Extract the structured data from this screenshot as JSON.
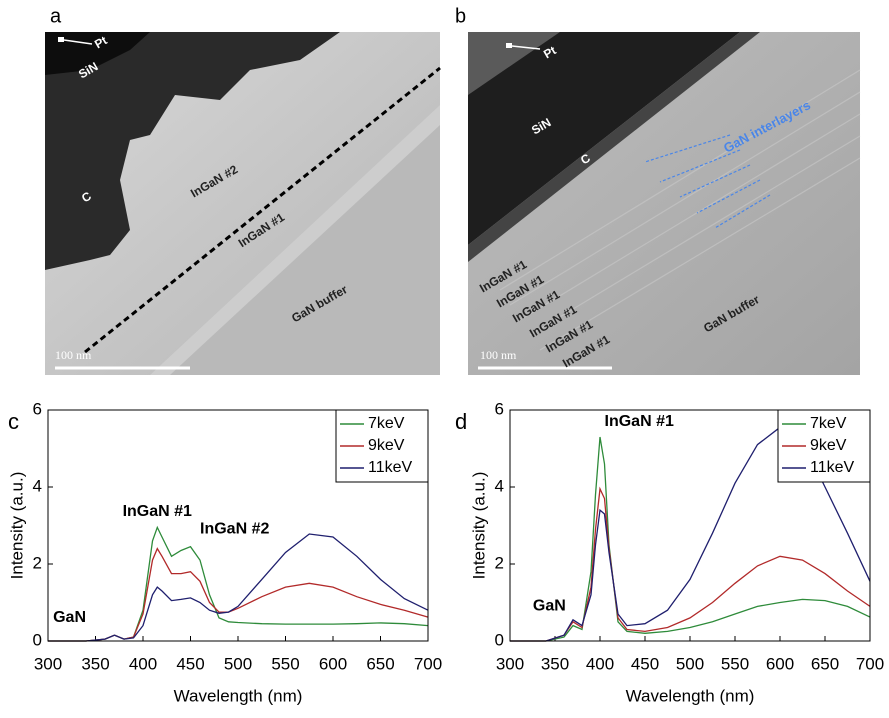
{
  "micrographs": [
    {
      "panel_label": "a",
      "labels": [
        "Pt",
        "SiN",
        "C",
        "InGaN #2",
        "InGaN #1",
        "GaN buffer"
      ],
      "scale_bar": "100 nm"
    },
    {
      "panel_label": "b",
      "labels": [
        "Pt",
        "SiN",
        "C",
        "GaN interlayers",
        "InGaN #1",
        "InGaN #1",
        "InGaN #1",
        "InGaN #1",
        "InGaN #1",
        "InGaN #1",
        "GaN buffer"
      ],
      "scale_bar": "100 nm"
    }
  ],
  "chart_data": [
    {
      "type": "line",
      "panel_label": "c",
      "xlabel": "Wavelength (nm)",
      "ylabel": "Intensity (a.u.)",
      "x": [
        300,
        340,
        360,
        370,
        380,
        390,
        400,
        410,
        415,
        420,
        430,
        440,
        450,
        460,
        470,
        480,
        490,
        500,
        525,
        550,
        575,
        600,
        625,
        650,
        675,
        700
      ],
      "series": [
        {
          "name": "7keV",
          "color": "#2e8b3a",
          "values": [
            0,
            0,
            0.05,
            0.15,
            0.05,
            0.1,
            0.8,
            2.6,
            2.95,
            2.7,
            2.2,
            2.35,
            2.45,
            2.1,
            1.2,
            0.6,
            0.5,
            0.48,
            0.45,
            0.44,
            0.44,
            0.44,
            0.45,
            0.47,
            0.45,
            0.4
          ]
        },
        {
          "name": "9keV",
          "color": "#b22a2a",
          "values": [
            0,
            0,
            0.05,
            0.15,
            0.05,
            0.1,
            0.7,
            2.1,
            2.4,
            2.2,
            1.75,
            1.75,
            1.8,
            1.55,
            1.0,
            0.75,
            0.75,
            0.85,
            1.15,
            1.4,
            1.5,
            1.4,
            1.15,
            0.95,
            0.8,
            0.62
          ]
        },
        {
          "name": "11keV",
          "color": "#1f1f6e",
          "values": [
            0,
            0,
            0.05,
            0.15,
            0.05,
            0.08,
            0.4,
            1.2,
            1.4,
            1.3,
            1.05,
            1.08,
            1.12,
            1.0,
            0.8,
            0.72,
            0.75,
            0.9,
            1.6,
            2.3,
            2.78,
            2.7,
            2.2,
            1.6,
            1.1,
            0.8
          ]
        }
      ],
      "xlim": [
        300,
        700
      ],
      "ylim": [
        0,
        6
      ],
      "xticks": [
        300,
        350,
        400,
        450,
        500,
        550,
        600,
        650,
        700
      ],
      "yticks": [
        0,
        2,
        4,
        6
      ],
      "legend": "upper right",
      "annotations": [
        "InGaN #1",
        "InGaN #2",
        "GaN"
      ]
    },
    {
      "type": "line",
      "panel_label": "d",
      "xlabel": "Wavelength (nm)",
      "ylabel": "Intensity (a.u.)",
      "x": [
        300,
        340,
        360,
        370,
        380,
        390,
        395,
        400,
        405,
        410,
        420,
        430,
        450,
        475,
        500,
        525,
        550,
        575,
        600,
        625,
        650,
        675,
        700
      ],
      "series": [
        {
          "name": "7keV",
          "color": "#2e8b3a",
          "values": [
            0,
            0,
            0.1,
            0.4,
            0.3,
            1.8,
            3.8,
            5.3,
            4.6,
            2.5,
            0.5,
            0.25,
            0.2,
            0.25,
            0.35,
            0.5,
            0.7,
            0.9,
            1.0,
            1.08,
            1.05,
            0.9,
            0.62
          ]
        },
        {
          "name": "9keV",
          "color": "#b22a2a",
          "values": [
            0,
            0,
            0.15,
            0.5,
            0.35,
            1.4,
            2.9,
            3.95,
            3.7,
            2.4,
            0.6,
            0.3,
            0.25,
            0.35,
            0.6,
            1.0,
            1.5,
            1.95,
            2.2,
            2.1,
            1.75,
            1.3,
            0.9
          ]
        },
        {
          "name": "11keV",
          "color": "#1f1f6e",
          "values": [
            0,
            0,
            0.15,
            0.55,
            0.4,
            1.2,
            2.5,
            3.4,
            3.3,
            2.3,
            0.7,
            0.4,
            0.45,
            0.8,
            1.6,
            2.8,
            4.1,
            5.1,
            5.55,
            5.2,
            4.0,
            2.8,
            1.55
          ]
        }
      ],
      "xlim": [
        300,
        700
      ],
      "ylim": [
        0,
        6
      ],
      "xticks": [
        300,
        350,
        400,
        450,
        500,
        550,
        600,
        650,
        700
      ],
      "yticks": [
        0,
        2,
        4,
        6
      ],
      "legend": "upper right",
      "annotations": [
        "InGaN #1",
        "GaN"
      ]
    }
  ]
}
